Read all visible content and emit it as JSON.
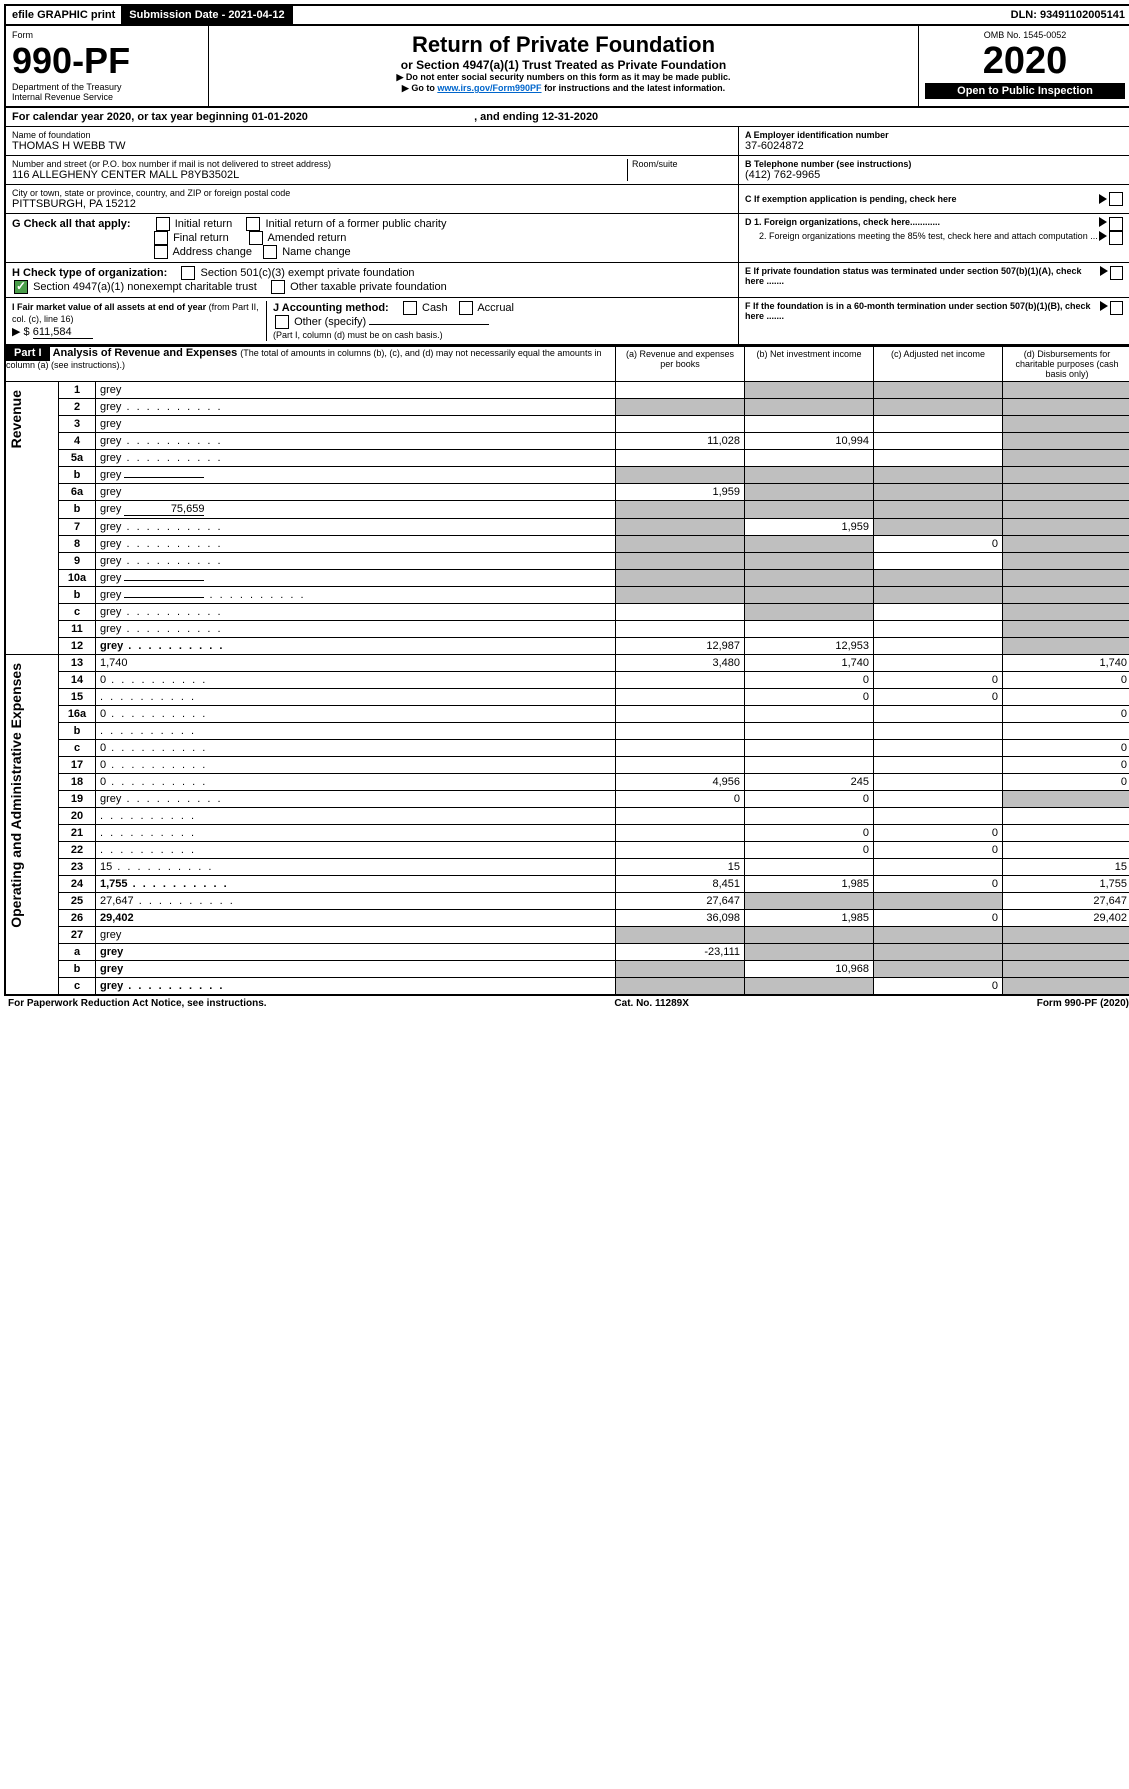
{
  "top": {
    "efile": "efile GRAPHIC print",
    "submission": "Submission Date - 2021-04-12",
    "dln": "DLN: 93491102005141"
  },
  "header": {
    "form_label": "Form",
    "form_number": "990-PF",
    "dept": "Department of the Treasury",
    "irs": "Internal Revenue Service",
    "title": "Return of Private Foundation",
    "subtitle": "or Section 4947(a)(1) Trust Treated as Private Foundation",
    "instr1": "▶ Do not enter social security numbers on this form as it may be made public.",
    "instr2_a": "▶ Go to ",
    "instr2_link": "www.irs.gov/Form990PF",
    "instr2_b": " for instructions and the latest information.",
    "omb": "OMB No. 1545-0052",
    "year": "2020",
    "open": "Open to Public Inspection"
  },
  "calendar": {
    "text_a": "For calendar year 2020, or tax year beginning ",
    "begin": "01-01-2020",
    "text_b": " , and ending ",
    "end": "12-31-2020"
  },
  "entity": {
    "name_label": "Name of foundation",
    "name": "THOMAS H WEBB TW",
    "addr_label": "Number and street (or P.O. box number if mail is not delivered to street address)",
    "addr": "116 ALLEGHENY CENTER MALL P8YB3502L",
    "room_label": "Room/suite",
    "city_label": "City or town, state or province, country, and ZIP or foreign postal code",
    "city": "PITTSBURGH, PA  15212",
    "ein_label": "A Employer identification number",
    "ein": "37-6024872",
    "phone_label": "B Telephone number (see instructions)",
    "phone": "(412) 762-9965",
    "c_label": "C If exemption application is pending, check here"
  },
  "checks": {
    "g_label": "G Check all that apply:",
    "g_opts": [
      "Initial return",
      "Initial return of a former public charity",
      "Final return",
      "Amended return",
      "Address change",
      "Name change"
    ],
    "h_label": "H Check type of organization:",
    "h_501": "Section 501(c)(3) exempt private foundation",
    "h_4947": "Section 4947(a)(1) nonexempt charitable trust",
    "h_other": "Other taxable private foundation",
    "i_label_a": "I Fair market value of all assets at end of year ",
    "i_label_b": "(from Part II, col. (c), line 16)",
    "i_prefix": "▶ $",
    "i_value": "611,584",
    "j_label": "J Accounting method:",
    "j_cash": "Cash",
    "j_accrual": "Accrual",
    "j_other": "Other (specify)",
    "j_note": "(Part I, column (d) must be on cash basis.)",
    "d1": "D 1. Foreign organizations, check here............",
    "d2": "2. Foreign organizations meeting the 85% test, check here and attach computation ...",
    "e": "E  If private foundation status was terminated under section 507(b)(1)(A), check here .......",
    "f": "F  If the foundation is in a 60-month termination under section 507(b)(1)(B), check here .......",
    "arrow": "▶"
  },
  "part1": {
    "label": "Part I",
    "title": "Analysis of Revenue and Expenses",
    "title_note": " (The total of amounts in columns (b), (c), and (d) may not necessarily equal the amounts in column (a) (see instructions).)",
    "col_a": "(a)   Revenue and expenses per books",
    "col_b": "(b)  Net investment income",
    "col_c": "(c)  Adjusted net income",
    "col_d": "(d)  Disbursements for charitable purposes (cash basis only)"
  },
  "sections": {
    "revenue": "Revenue",
    "expenses": "Operating and Administrative Expenses"
  },
  "rows": [
    {
      "n": "1",
      "d": "grey",
      "a": "",
      "b": "grey",
      "c": "grey"
    },
    {
      "n": "2",
      "d": "grey",
      "dots": true,
      "a": "grey",
      "b": "grey",
      "c": "grey"
    },
    {
      "n": "3",
      "d": "grey",
      "a": "",
      "b": "",
      "c": ""
    },
    {
      "n": "4",
      "d": "grey",
      "dots": true,
      "a": "11,028",
      "b": "10,994",
      "c": ""
    },
    {
      "n": "5a",
      "d": "grey",
      "dots": true,
      "a": "",
      "b": "",
      "c": ""
    },
    {
      "n": "b",
      "d": "grey",
      "line": true,
      "a": "grey",
      "b": "grey",
      "c": "grey"
    },
    {
      "n": "6a",
      "d": "grey",
      "a": "1,959",
      "b": "grey",
      "c": "grey"
    },
    {
      "n": "b",
      "d": "grey",
      "line": true,
      "lineval": "75,659",
      "a": "grey",
      "b": "grey",
      "c": "grey"
    },
    {
      "n": "7",
      "d": "grey",
      "dots": true,
      "a": "grey",
      "b": "1,959",
      "c": "grey"
    },
    {
      "n": "8",
      "d": "grey",
      "dots": true,
      "a": "grey",
      "b": "grey",
      "c": "0"
    },
    {
      "n": "9",
      "d": "grey",
      "dots": true,
      "a": "grey",
      "b": "grey",
      "c": ""
    },
    {
      "n": "10a",
      "d": "grey",
      "line": true,
      "a": "grey",
      "b": "grey",
      "c": "grey"
    },
    {
      "n": "b",
      "d": "grey",
      "dots": true,
      "line": true,
      "a": "grey",
      "b": "grey",
      "c": "grey"
    },
    {
      "n": "c",
      "d": "grey",
      "dots": true,
      "a": "",
      "b": "grey",
      "c": ""
    },
    {
      "n": "11",
      "d": "grey",
      "dots": true,
      "a": "",
      "b": "",
      "c": ""
    },
    {
      "n": "12",
      "d": "grey",
      "dots": true,
      "bold": true,
      "a": "12,987",
      "b": "12,953",
      "c": ""
    }
  ],
  "exp_rows": [
    {
      "n": "13",
      "d": "1,740",
      "a": "3,480",
      "b": "1,740",
      "c": ""
    },
    {
      "n": "14",
      "d": "0",
      "dots": true,
      "a": "",
      "b": "0",
      "c": "0"
    },
    {
      "n": "15",
      "d": "",
      "dots": true,
      "a": "",
      "b": "0",
      "c": "0"
    },
    {
      "n": "16a",
      "d": "0",
      "dots": true,
      "a": "",
      "b": "",
      "c": ""
    },
    {
      "n": "b",
      "d": "",
      "dots": true,
      "a": "",
      "b": "",
      "c": ""
    },
    {
      "n": "c",
      "d": "0",
      "dots": true,
      "a": "",
      "b": "",
      "c": ""
    },
    {
      "n": "17",
      "d": "0",
      "dots": true,
      "a": "",
      "b": "",
      "c": ""
    },
    {
      "n": "18",
      "d": "0",
      "dots": true,
      "a": "4,956",
      "b": "245",
      "c": ""
    },
    {
      "n": "19",
      "d": "grey",
      "dots": true,
      "a": "0",
      "b": "0",
      "c": ""
    },
    {
      "n": "20",
      "d": "",
      "dots": true,
      "a": "",
      "b": "",
      "c": ""
    },
    {
      "n": "21",
      "d": "",
      "dots": true,
      "a": "",
      "b": "0",
      "c": "0"
    },
    {
      "n": "22",
      "d": "",
      "dots": true,
      "a": "",
      "b": "0",
      "c": "0"
    },
    {
      "n": "23",
      "d": "15",
      "dots": true,
      "a": "15",
      "b": "",
      "c": ""
    },
    {
      "n": "24",
      "d": "1,755",
      "dots": true,
      "bold": true,
      "a": "8,451",
      "b": "1,985",
      "c": "0"
    },
    {
      "n": "25",
      "d": "27,647",
      "dots": true,
      "a": "27,647",
      "b": "grey",
      "c": "grey"
    },
    {
      "n": "26",
      "d": "29,402",
      "bold": true,
      "a": "36,098",
      "b": "1,985",
      "c": "0"
    },
    {
      "n": "27",
      "d": "grey",
      "a": "grey",
      "b": "grey",
      "c": "grey"
    },
    {
      "n": "a",
      "d": "grey",
      "bold": true,
      "a": "-23,111",
      "b": "grey",
      "c": "grey"
    },
    {
      "n": "b",
      "d": "grey",
      "bold": true,
      "a": "grey",
      "b": "10,968",
      "c": "grey"
    },
    {
      "n": "c",
      "d": "grey",
      "dots": true,
      "bold": true,
      "a": "grey",
      "b": "grey",
      "c": "0"
    }
  ],
  "footer": {
    "left": "For Paperwork Reduction Act Notice, see instructions.",
    "mid": "Cat. No. 11289X",
    "right": "Form 990-PF (2020)"
  }
}
